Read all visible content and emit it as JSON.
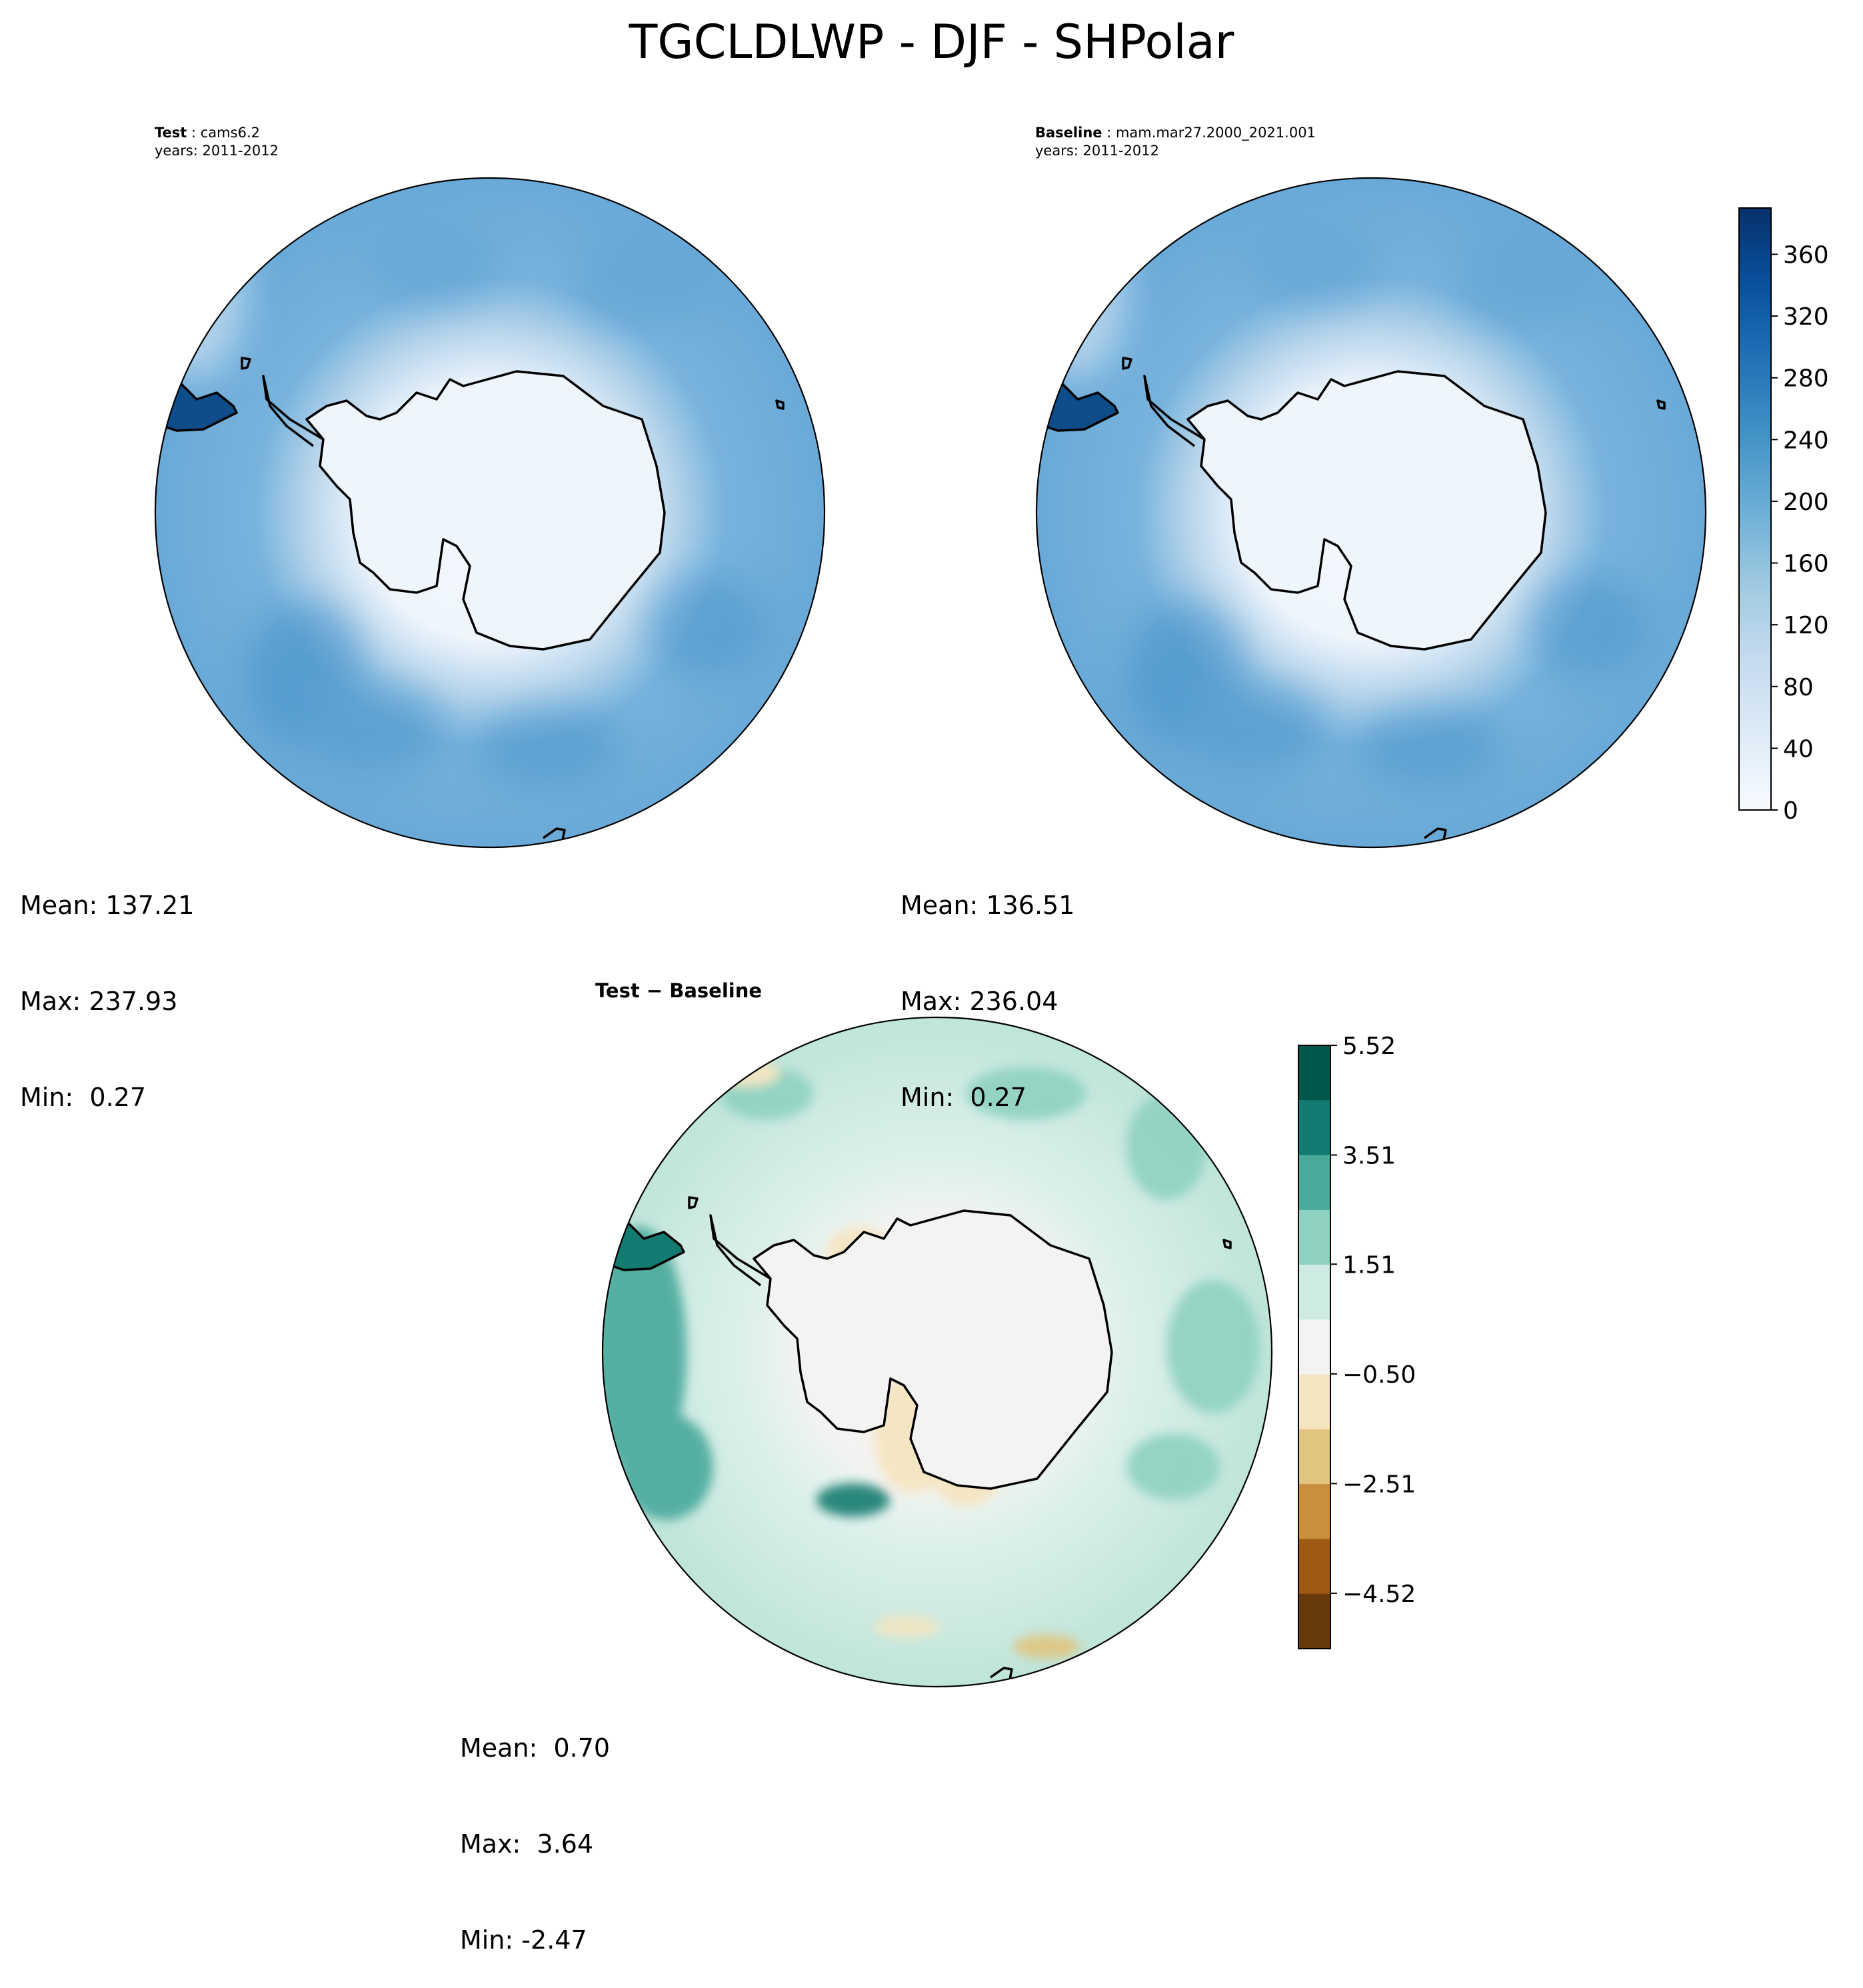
{
  "figure": {
    "title": "TGCLDLWP - DJF - SHPolar"
  },
  "panels": {
    "test": {
      "label": "Test",
      "case": "cams6.2",
      "years": "years: 2011-2012",
      "stats": {
        "mean": "Mean: 137.21",
        "max": "Max: 237.93",
        "min": "Min:  0.27"
      }
    },
    "baseline": {
      "label": "Baseline",
      "case": "mam.mar27.2000_2021.001",
      "years": "years: 2011-2012",
      "stats": {
        "mean": "Mean: 136.51",
        "max": "Max: 236.04",
        "min": "Min:  0.27"
      }
    },
    "difference": {
      "title": "Test − Baseline",
      "stats": {
        "mean": "Mean:  0.70",
        "max": "Max:  3.64",
        "min": "Min: -2.47"
      }
    }
  },
  "chart_data": [
    {
      "type": "heatmap",
      "panel": "Test",
      "projection": "south-polar-stereographic",
      "colormap": "Blues",
      "colorbar": {
        "ticks": [
          "0",
          "40",
          "80",
          "120",
          "160",
          "200",
          "240",
          "280",
          "320",
          "360"
        ],
        "range": [
          0,
          390
        ]
      },
      "mean": 137.21,
      "max": 237.93,
      "min": 0.27
    },
    {
      "type": "heatmap",
      "panel": "Baseline",
      "projection": "south-polar-stereographic",
      "colormap": "Blues",
      "colorbar": {
        "ticks": [
          "0",
          "40",
          "80",
          "120",
          "160",
          "200",
          "240",
          "280",
          "320",
          "360"
        ],
        "range": [
          0,
          390
        ]
      },
      "mean": 136.51,
      "max": 236.04,
      "min": 0.27
    },
    {
      "type": "heatmap",
      "panel": "Test − Baseline",
      "projection": "south-polar-stereographic",
      "colormap": "BrBG",
      "colorbar": {
        "ticks": [
          "5.52",
          "3.51",
          "1.51",
          "−0.50",
          "−2.51",
          "−4.52"
        ],
        "levels": [
          5.52,
          3.51,
          1.51,
          -0.5,
          -2.51,
          -4.52
        ],
        "band_colors": [
          "#02574b",
          "#137b70",
          "#4aa99b",
          "#8fd1c1",
          "#cdebe3",
          "#f3f3f1",
          "#f5e5bf",
          "#e1c57f",
          "#c98f3d",
          "#9e5a14",
          "#673a0b"
        ]
      },
      "mean": 0.7,
      "max": 3.64,
      "min": -2.47
    }
  ]
}
